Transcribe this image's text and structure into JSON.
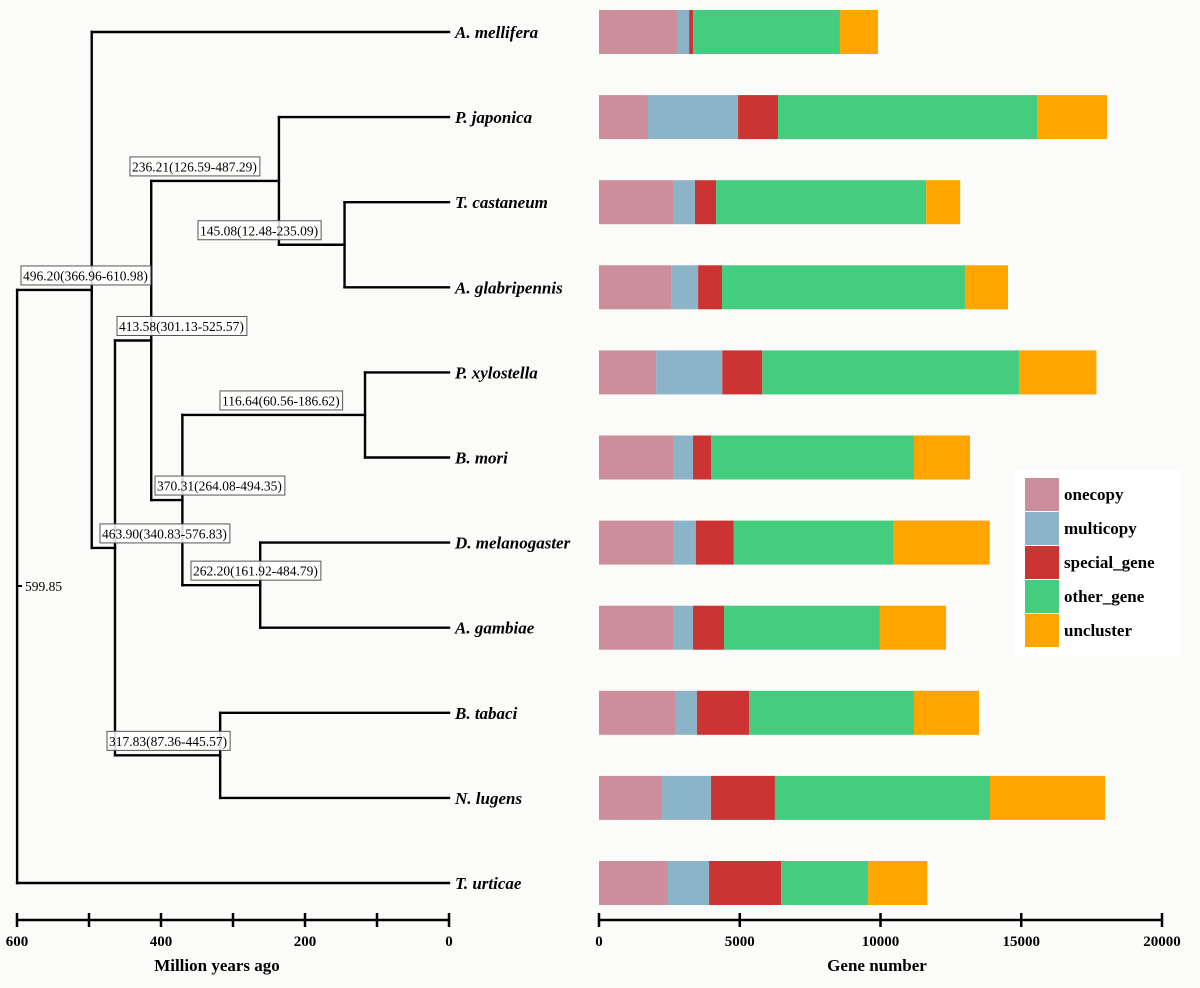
{
  "chart_data": [
    {
      "type": "tree",
      "title": "",
      "xlabel": "Million years ago",
      "xlim": [
        600,
        0
      ],
      "xticks": [
        600,
        500,
        400,
        300,
        200,
        100,
        0
      ],
      "xtick_labels": [
        "600",
        "",
        "400",
        "",
        "200",
        "",
        "0"
      ],
      "root_label": "599.85",
      "tree": {
        "age": 599.85,
        "label": "599.85",
        "children": [
          {
            "age": 496.2,
            "label": "496.20(366.96-610.98)",
            "children": [
              {
                "leaf": "A.  mellifera"
              },
              {
                "age": 463.9,
                "label": "463.90(340.83-576.83)",
                "children": [
                  {
                    "age": 413.58,
                    "label": "413.58(301.13-525.57)",
                    "children": [
                      {
                        "age": 236.21,
                        "label": "236.21(126.59-487.29)",
                        "children": [
                          {
                            "leaf": "P. japonica"
                          },
                          {
                            "age": 145.08,
                            "label": "145.08(12.48-235.09)",
                            "children": [
                              {
                                "leaf": "T. castaneum"
                              },
                              {
                                "leaf": "A. glabripennis"
                              }
                            ]
                          }
                        ]
                      },
                      {
                        "age": 370.31,
                        "label": "370.31(264.08-494.35)",
                        "children": [
                          {
                            "age": 116.64,
                            "label": "116.64(60.56-186.62)",
                            "children": [
                              {
                                "leaf": "P. xylostella"
                              },
                              {
                                "leaf": "B. mori"
                              }
                            ]
                          },
                          {
                            "age": 262.2,
                            "label": "262.20(161.92-484.79)",
                            "children": [
                              {
                                "leaf": "D. melanogaster"
                              },
                              {
                                "leaf": "A. gambiae"
                              }
                            ]
                          }
                        ]
                      }
                    ]
                  },
                  {
                    "age": 317.83,
                    "label": "317.83(87.36-445.57)",
                    "children": [
                      {
                        "leaf": "B. tabaci"
                      },
                      {
                        "leaf": "N. lugens"
                      }
                    ]
                  }
                ]
              }
            ]
          },
          {
            "leaf": "T. urticae"
          }
        ]
      }
    },
    {
      "type": "bar",
      "orientation": "horizontal",
      "stacked": true,
      "title": "",
      "xlabel": "Gene number",
      "ylabel": "",
      "xlim": [
        0,
        20000
      ],
      "xticks": [
        0,
        5000,
        10000,
        15000,
        20000
      ],
      "xtick_labels": [
        "0",
        "5000",
        "10000",
        "15000",
        "20000"
      ],
      "legend_position": "right",
      "categories": [
        "A. mellifera",
        "P. japonica",
        "T. castaneum",
        "A. glabripennis",
        "P. xylostella",
        "B. mori",
        "D. melanogaster",
        "A. gambiae",
        "B. tabaci",
        "N. lugens",
        "T. urticae"
      ],
      "series": [
        {
          "name": "onecopy",
          "color": "#cc8e9a",
          "values": [
            2770,
            1740,
            2660,
            2560,
            2030,
            2660,
            2660,
            2660,
            2700,
            2240,
            2450
          ]
        },
        {
          "name": "multicopy",
          "color": "#8cb4c9",
          "values": [
            430,
            3200,
            750,
            960,
            2350,
            680,
            780,
            680,
            780,
            1740,
            1460
          ]
        },
        {
          "name": "special_gene",
          "color": "#cc3333",
          "values": [
            140,
            1420,
            750,
            850,
            1420,
            640,
            1350,
            1100,
            1850,
            2270,
            2560
          ]
        },
        {
          "name": "other_gene",
          "color": "#44cc7f",
          "values": [
            5220,
            9200,
            7460,
            8630,
            9130,
            7210,
            5680,
            5540,
            5860,
            7640,
            3090
          ]
        },
        {
          "name": "uncluster",
          "color": "#ffa500",
          "values": [
            1350,
            2490,
            1210,
            1530,
            2740,
            1990,
            3410,
            2350,
            2310,
            4090,
            2100
          ]
        }
      ]
    }
  ]
}
